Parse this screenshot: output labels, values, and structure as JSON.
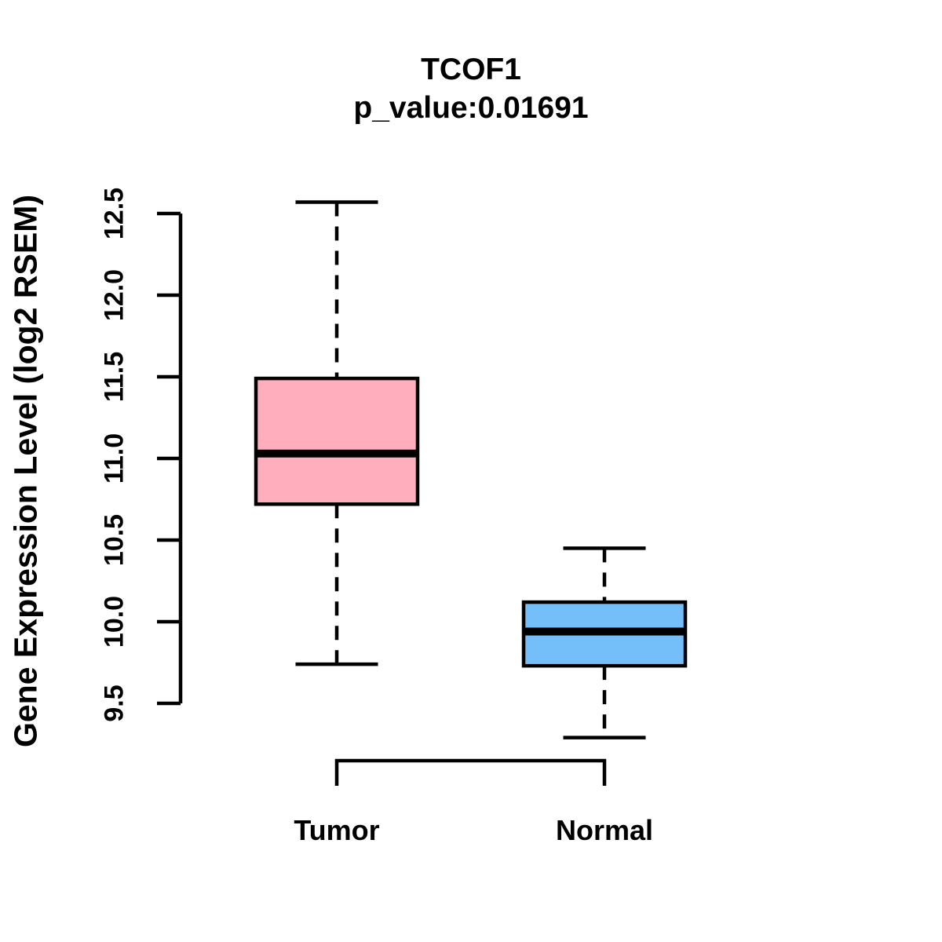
{
  "chart_data": {
    "type": "boxplot",
    "title": "TCOF1",
    "subtitle": "p_value:0.01691",
    "ylabel": "Gene Expression Level (log2 RSEM)",
    "xlabel": "",
    "categories": [
      "Tumor",
      "Normal"
    ],
    "yticks": [
      9.5,
      10.0,
      10.5,
      11.0,
      11.5,
      12.0,
      12.5
    ],
    "ylim": [
      9.5,
      12.5
    ],
    "grid": false,
    "legend": "none",
    "series": [
      {
        "name": "Tumor",
        "color": "#FFAEBE",
        "lower_whisker": 9.74,
        "q1": 10.72,
        "median": 11.03,
        "q3": 11.49,
        "upper_whisker": 12.57
      },
      {
        "name": "Normal",
        "color": "#74BEFA",
        "lower_whisker": 9.29,
        "q1": 9.73,
        "median": 9.94,
        "q3": 10.12,
        "upper_whisker": 10.45
      }
    ],
    "colors": {
      "stroke": "#000000",
      "tumor_fill": "#FFAEBE",
      "normal_fill": "#74BEFA"
    }
  }
}
